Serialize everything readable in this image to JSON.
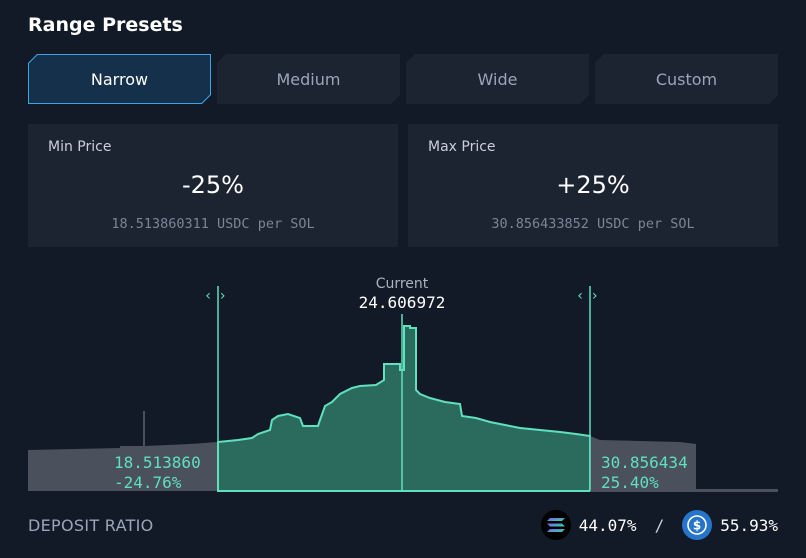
{
  "title": "Range Presets",
  "tabs": [
    {
      "label": "Narrow",
      "active": true
    },
    {
      "label": "Medium",
      "active": false
    },
    {
      "label": "Wide",
      "active": false
    },
    {
      "label": "Custom",
      "active": false
    }
  ],
  "min_price": {
    "label": "Min Price",
    "value": "-25%",
    "sub": "18.513860311 USDC per SOL"
  },
  "max_price": {
    "label": "Max Price",
    "value": "+25%",
    "sub": "30.856433852 USDC per SOL"
  },
  "chart": {
    "current_label": "Current",
    "current_value": "24.606972",
    "left_handle": {
      "price": "18.513860",
      "pct": "-24.76%"
    },
    "right_handle": {
      "price": "30.856434",
      "pct": "25.40%"
    },
    "handle_arrows": "‹›"
  },
  "deposit": {
    "label": "DEPOSIT RATIO",
    "sol_pct": "44.07%",
    "separator": "/",
    "usdc_pct": "55.93%"
  },
  "colors": {
    "accent": "#5fe0bf",
    "in_range_fill": "#2a6b5d",
    "out_range_fill": "#4a505c",
    "tab_active_border": "#3aa6e6",
    "usdc_blue": "#2775ca"
  },
  "icons": [
    "solana-icon",
    "usdc-icon",
    "chevron-left-icon",
    "chevron-right-icon"
  ]
}
